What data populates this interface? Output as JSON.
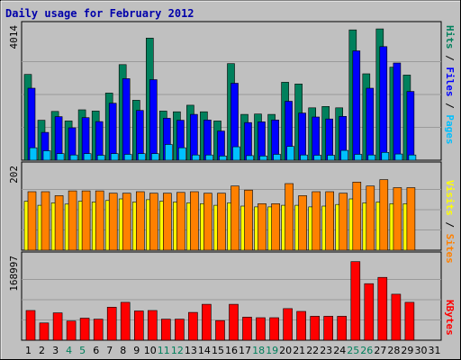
{
  "title": "Daily usage for February 2012",
  "colors": {
    "background": "#c0c0c0",
    "hits": "#00805c",
    "files": "#0000ff",
    "pages": "#00c0ff",
    "visits": "#ffff00",
    "sites": "#ff8000",
    "kbytes": "#ff0000",
    "weekend_day": "#00805c",
    "weekday": "#000000",
    "title": "#0000aa"
  },
  "chart_data": [
    {
      "type": "bar",
      "panel": "hits-files-pages",
      "max_label": "4014",
      "ymax": 4014,
      "side_labels": {
        "pages": "Pages",
        "files": "Files",
        "hits": "Hits",
        "separator": " / "
      },
      "categories": [
        "1",
        "2",
        "3",
        "4",
        "5",
        "6",
        "7",
        "8",
        "9",
        "10",
        "11",
        "12",
        "13",
        "14",
        "15",
        "16",
        "17",
        "18",
        "19",
        "20",
        "21",
        "22",
        "23",
        "24",
        "25",
        "26",
        "27",
        "28",
        "29",
        "30",
        "31"
      ],
      "series": [
        {
          "name": "Hits",
          "values": [
            2620,
            1220,
            1490,
            1200,
            1540,
            1500,
            2050,
            2920,
            1830,
            3730,
            1500,
            1480,
            1680,
            1480,
            1200,
            2950,
            1400,
            1410,
            1400,
            2380,
            2330,
            1600,
            1640,
            1600,
            3980,
            2640,
            4010,
            2840,
            2600,
            0,
            0
          ]
        },
        {
          "name": "Files",
          "values": [
            2200,
            850,
            1330,
            990,
            1300,
            1180,
            1740,
            2490,
            1520,
            2460,
            1280,
            1220,
            1400,
            1230,
            890,
            2350,
            1150,
            1170,
            1230,
            1800,
            1440,
            1320,
            1260,
            1340,
            3340,
            2200,
            3470,
            2970,
            2100,
            0,
            0
          ]
        },
        {
          "name": "Pages",
          "values": [
            380,
            290,
            200,
            160,
            200,
            150,
            200,
            180,
            200,
            200,
            480,
            380,
            160,
            160,
            130,
            410,
            140,
            130,
            180,
            420,
            160,
            150,
            150,
            300,
            180,
            160,
            240,
            190,
            160,
            0,
            0
          ]
        }
      ]
    },
    {
      "type": "bar",
      "panel": "visits-sites",
      "max_label": "202",
      "ymax": 202,
      "side_labels": {
        "sites": "Sites",
        "visits": "Visits",
        "separator": " / "
      },
      "categories": [
        "1",
        "2",
        "3",
        "4",
        "5",
        "6",
        "7",
        "8",
        "9",
        "10",
        "11",
        "12",
        "13",
        "14",
        "15",
        "16",
        "17",
        "18",
        "19",
        "20",
        "21",
        "22",
        "23",
        "24",
        "25",
        "26",
        "27",
        "28",
        "29",
        "30",
        "31"
      ],
      "series": [
        {
          "name": "Visits",
          "values": [
            122,
            112,
            118,
            115,
            122,
            120,
            124,
            128,
            120,
            126,
            122,
            120,
            118,
            116,
            112,
            118,
            110,
            108,
            108,
            112,
            112,
            108,
            110,
            114,
            128,
            118,
            120,
            116,
            116,
            0,
            0
          ]
        },
        {
          "name": "Sites",
          "values": [
            146,
            146,
            136,
            148,
            148,
            148,
            142,
            142,
            146,
            142,
            142,
            144,
            146,
            142,
            142,
            160,
            150,
            116,
            116,
            166,
            136,
            146,
            146,
            142,
            170,
            160,
            176,
            156,
            156,
            0,
            0
          ]
        }
      ]
    },
    {
      "type": "bar",
      "panel": "kbytes",
      "max_label": "168997",
      "ymax": 168997,
      "side_labels": {
        "kbytes": "KBytes"
      },
      "categories": [
        "1",
        "2",
        "3",
        "4",
        "5",
        "6",
        "7",
        "8",
        "9",
        "10",
        "11",
        "12",
        "13",
        "14",
        "15",
        "16",
        "17",
        "18",
        "19",
        "20",
        "21",
        "22",
        "23",
        "24",
        "25",
        "26",
        "27",
        "28",
        "29",
        "30",
        "31"
      ],
      "series": [
        {
          "name": "KBytes",
          "values": [
            62000,
            36000,
            57000,
            40000,
            46000,
            44000,
            69000,
            79000,
            61000,
            62000,
            44000,
            44000,
            58000,
            75000,
            41000,
            75000,
            48000,
            47000,
            47000,
            66000,
            60000,
            50000,
            50000,
            50000,
            164000,
            118000,
            131000,
            96000,
            79000,
            0,
            0
          ]
        }
      ]
    }
  ],
  "days": {
    "labels": [
      "1",
      "2",
      "3",
      "4",
      "5",
      "6",
      "7",
      "8",
      "9",
      "10",
      "11",
      "12",
      "13",
      "14",
      "15",
      "16",
      "17",
      "18",
      "19",
      "20",
      "21",
      "22",
      "23",
      "24",
      "25",
      "26",
      "27",
      "28",
      "29",
      "30",
      "31"
    ],
    "weekend": [
      4,
      5,
      11,
      12,
      18,
      19,
      25,
      26
    ]
  }
}
